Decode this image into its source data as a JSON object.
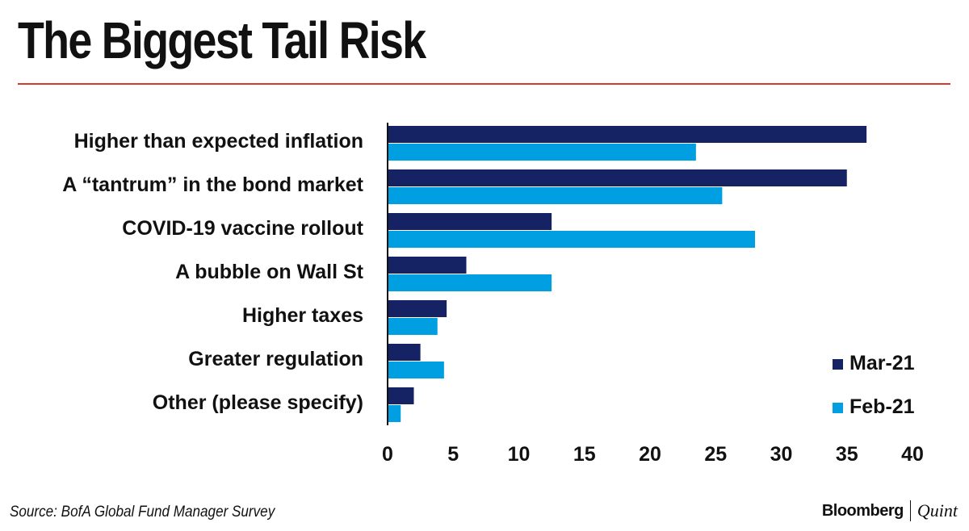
{
  "title": "The Biggest Tail Risk",
  "source": "Source: BofA Global Fund Manager Survey",
  "brand": {
    "primary": "Bloomberg",
    "secondary": "Quint"
  },
  "colors": {
    "mar": "#152263",
    "feb": "#009fe2",
    "accent_rule": "#d9372b"
  },
  "chart_data": {
    "type": "bar",
    "orientation": "horizontal",
    "title": "The Biggest Tail Risk",
    "categories": [
      "Higher than expected inflation",
      "A “tantrum” in the bond market",
      "COVID-19 vaccine rollout",
      "A bubble on Wall St",
      "Higher taxes",
      "Greater regulation",
      "Other (please specify)"
    ],
    "series": [
      {
        "name": "Mar-21",
        "color": "#152263",
        "values": [
          36.5,
          35,
          12.5,
          6,
          4.5,
          2.5,
          2
        ]
      },
      {
        "name": "Feb-21",
        "color": "#009fe2",
        "values": [
          23.5,
          25.5,
          28,
          12.5,
          3.8,
          4.3,
          1
        ]
      }
    ],
    "xlim": [
      0,
      40
    ],
    "xticks": [
      "0",
      "5",
      "10",
      "15",
      "20",
      "25",
      "30",
      "35",
      "40"
    ],
    "xlabel": "",
    "ylabel": "",
    "grid": false,
    "legend_position": "bottom-right"
  }
}
